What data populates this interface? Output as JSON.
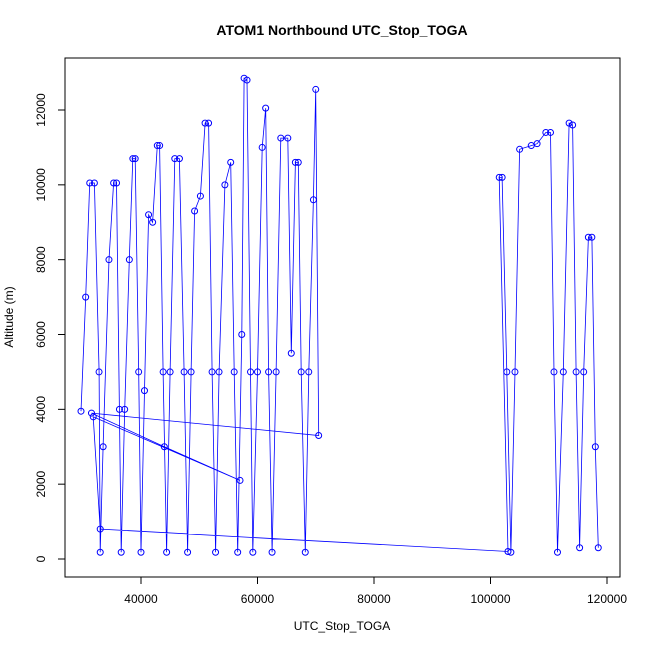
{
  "chart_data": {
    "type": "line",
    "title": "ATOM1 Northbound UTC_Stop_TOGA",
    "x_label": "UTC_Stop_TOGA",
    "y_label": "Altitude (m)",
    "color": "#0000ff",
    "markers": true,
    "xlim": [
      26953,
      122232
    ],
    "ylim": [
      -481,
      13390
    ],
    "xticks": [
      40000,
      60000,
      80000,
      100000,
      120000
    ],
    "yticks": [
      0,
      2000,
      4000,
      6000,
      8000,
      10000,
      12000
    ],
    "x": [
      29700,
      30500,
      31200,
      32000,
      32800,
      33000,
      33500,
      34500,
      35300,
      35800,
      36300,
      36600,
      37200,
      38000,
      38600,
      39000,
      39600,
      40000,
      40600,
      41300,
      42000,
      42800,
      43200,
      43800,
      44400,
      45000,
      45800,
      46600,
      47400,
      48000,
      48600,
      49200,
      50200,
      51000,
      51600,
      52200,
      52800,
      53400,
      54400,
      55400,
      56000,
      56600,
      57300,
      57700,
      58200,
      58800,
      59200,
      60000,
      60800,
      61400,
      61900,
      62500,
      63200,
      64000,
      65200,
      65800,
      66500,
      67000,
      67500,
      68200,
      68800,
      69600,
      70000,
      70500,
      31500,
      44000,
      57000,
      31800,
      33000,
      103000,
      101500,
      102000,
      102800,
      103500,
      104200,
      105000,
      107000,
      108000,
      109500,
      110300,
      110900,
      111500,
      112500,
      113500,
      114100,
      114700,
      115300,
      116000,
      116800,
      117400,
      118000,
      118500
    ],
    "y": [
      3950,
      7000,
      10050,
      10050,
      5000,
      180,
      3000,
      8000,
      10050,
      10050,
      4000,
      180,
      4000,
      8000,
      10700,
      10700,
      5000,
      180,
      4500,
      9200,
      9000,
      11050,
      11050,
      5000,
      180,
      5000,
      10700,
      10700,
      5000,
      180,
      5000,
      9300,
      9700,
      11650,
      11650,
      5000,
      180,
      5000,
      10000,
      10600,
      5000,
      180,
      6000,
      12850,
      12800,
      5000,
      180,
      5000,
      11000,
      12050,
      5000,
      180,
      5000,
      11250,
      11250,
      5500,
      10600,
      10600,
      5000,
      180,
      5000,
      9600,
      12550,
      3300,
      3900,
      3000,
      2100,
      3800,
      800,
      200,
      10200,
      10200,
      5000,
      180,
      5000,
      10950,
      11050,
      11100,
      11400,
      11400,
      5000,
      180,
      5000,
      11650,
      11600,
      5000,
      300,
      5000,
      8600,
      8600,
      3000,
      300
    ]
  }
}
